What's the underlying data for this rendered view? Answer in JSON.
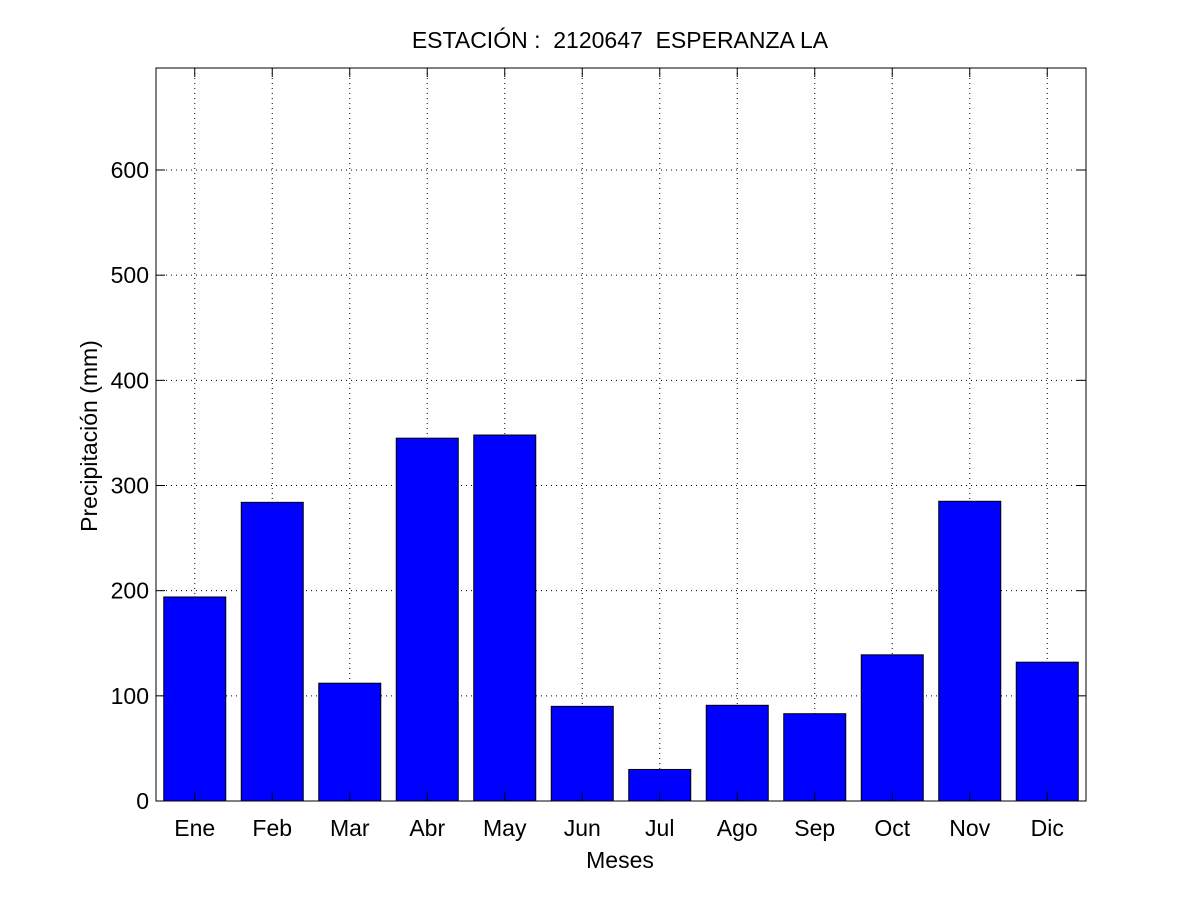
{
  "chart_data": {
    "type": "bar",
    "title": "ESTACIÓN :  2120647  ESPERANZA LA",
    "xlabel": "Meses",
    "ylabel": "Precipitación (mm)",
    "categories": [
      "Ene",
      "Feb",
      "Mar",
      "Abr",
      "May",
      "Jun",
      "Jul",
      "Ago",
      "Sep",
      "Oct",
      "Nov",
      "Dic"
    ],
    "values": [
      194,
      284,
      112,
      345,
      348,
      90,
      30,
      91,
      83,
      139,
      285,
      132
    ],
    "ylim": [
      0,
      697
    ],
    "yticks": [
      0,
      100,
      200,
      300,
      400,
      500,
      600
    ],
    "grid": true,
    "bar_color": "#0000ff"
  }
}
